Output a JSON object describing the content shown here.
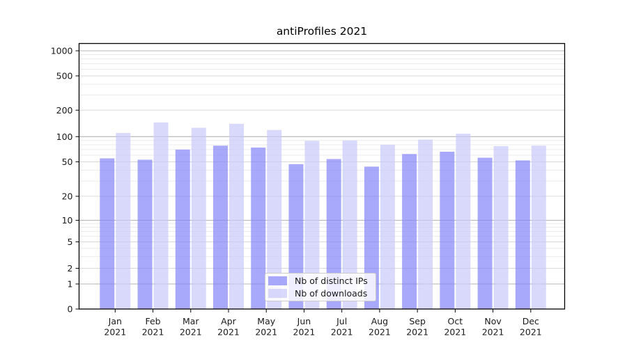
{
  "chart_data": {
    "type": "bar",
    "title": "antiProfiles 2021",
    "year_label": "2021",
    "categories": [
      "Jan",
      "Feb",
      "Mar",
      "Apr",
      "May",
      "Jun",
      "Jul",
      "Aug",
      "Sep",
      "Oct",
      "Nov",
      "Dec"
    ],
    "series": [
      {
        "name": "Nb of distinct IPs",
        "color": "#8484FA",
        "alpha": 0.7,
        "values": [
          55,
          53,
          70,
          78,
          74,
          47,
          54,
          44,
          62,
          66,
          56,
          52
        ]
      },
      {
        "name": "Nb of downloads",
        "color": "#C9C9FA",
        "alpha": 0.7,
        "values": [
          110,
          145,
          126,
          140,
          119,
          89,
          90,
          80,
          92,
          108,
          77,
          78
        ]
      }
    ],
    "y_ticks": [
      0,
      1,
      2,
      5,
      10,
      20,
      50,
      100,
      200,
      500,
      1000
    ],
    "y_scale": "log-like",
    "ylim": [
      0,
      1000
    ],
    "xlabel": "",
    "ylabel": "",
    "grid": true,
    "legend_position": "bottom-center",
    "colors": {
      "major_grid": "#b5b5b5",
      "mid_grid": "#d8d8d8",
      "minor_grid": "#ebebeb",
      "spine": "#000000",
      "tick_text": "#1a1a1a",
      "background": "#ffffff"
    }
  }
}
